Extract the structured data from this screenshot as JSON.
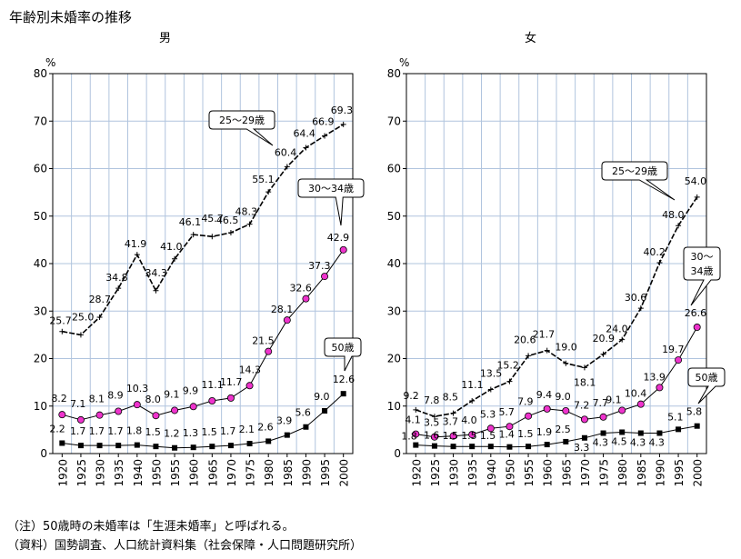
{
  "title": "年齢別未婚率の推移",
  "note": "（注）50歳時の未婚率は「生涯未婚率」と呼ばれる。",
  "source": "（資料）国勢調査、人口統計資料集（社会保障・人口問題研究所）",
  "colors": {
    "grid": "#b0c4de",
    "line": "#000000",
    "marker_30_34": "#ee33cc",
    "marker_50": "#000000"
  },
  "chart_data": [
    {
      "type": "line",
      "title": "男",
      "unit": "%",
      "ylim": [
        0,
        80
      ],
      "yticks": [
        0,
        10,
        20,
        30,
        40,
        50,
        60,
        70,
        80
      ],
      "grid": true,
      "x": [
        1920,
        1925,
        1930,
        1935,
        1940,
        1950,
        1955,
        1960,
        1965,
        1970,
        1975,
        1980,
        1985,
        1990,
        1995,
        2000
      ],
      "series": [
        {
          "name": "25～29歳",
          "marker": "plus",
          "values": [
            25.7,
            25.0,
            28.7,
            34.8,
            41.9,
            34.3,
            41.0,
            46.1,
            45.7,
            46.5,
            48.3,
            55.1,
            60.4,
            64.4,
            66.9,
            69.3
          ]
        },
        {
          "name": "30～34歳",
          "marker": "circle",
          "values": [
            8.2,
            7.1,
            8.1,
            8.9,
            10.3,
            8.0,
            9.1,
            9.9,
            11.1,
            11.7,
            14.3,
            21.5,
            28.1,
            32.6,
            37.3,
            42.9
          ]
        },
        {
          "name": "50歳",
          "marker": "square",
          "values": [
            2.2,
            1.7,
            1.7,
            1.7,
            1.8,
            1.5,
            1.2,
            1.3,
            1.5,
            1.7,
            2.1,
            2.6,
            3.9,
            5.6,
            9.0,
            12.6
          ]
        }
      ]
    },
    {
      "type": "line",
      "title": "女",
      "unit": "%",
      "ylim": [
        0,
        80
      ],
      "yticks": [
        0,
        10,
        20,
        30,
        40,
        50,
        60,
        70,
        80
      ],
      "grid": true,
      "x": [
        1920,
        1925,
        1930,
        1935,
        1940,
        1950,
        1955,
        1960,
        1965,
        1970,
        1975,
        1980,
        1985,
        1990,
        1995,
        2000
      ],
      "series": [
        {
          "name": "25～29歳",
          "marker": "plus",
          "values": [
            9.2,
            7.8,
            8.5,
            11.1,
            13.5,
            15.2,
            20.6,
            21.7,
            19.0,
            18.1,
            20.9,
            24.0,
            30.6,
            40.2,
            48.0,
            54.0
          ]
        },
        {
          "name": "30～34歳",
          "marker": "circle",
          "values": [
            4.1,
            3.5,
            3.7,
            4.0,
            5.3,
            5.7,
            7.9,
            9.4,
            9.0,
            7.2,
            7.7,
            9.1,
            10.4,
            13.9,
            19.7,
            26.6
          ]
        },
        {
          "name": "50歳",
          "marker": "square",
          "values": [
            1.8,
            1.6,
            1.5,
            1.5,
            1.5,
            1.4,
            1.5,
            1.9,
            2.5,
            3.3,
            4.3,
            4.5,
            4.3,
            4.3,
            5.1,
            5.8
          ]
        }
      ]
    }
  ]
}
